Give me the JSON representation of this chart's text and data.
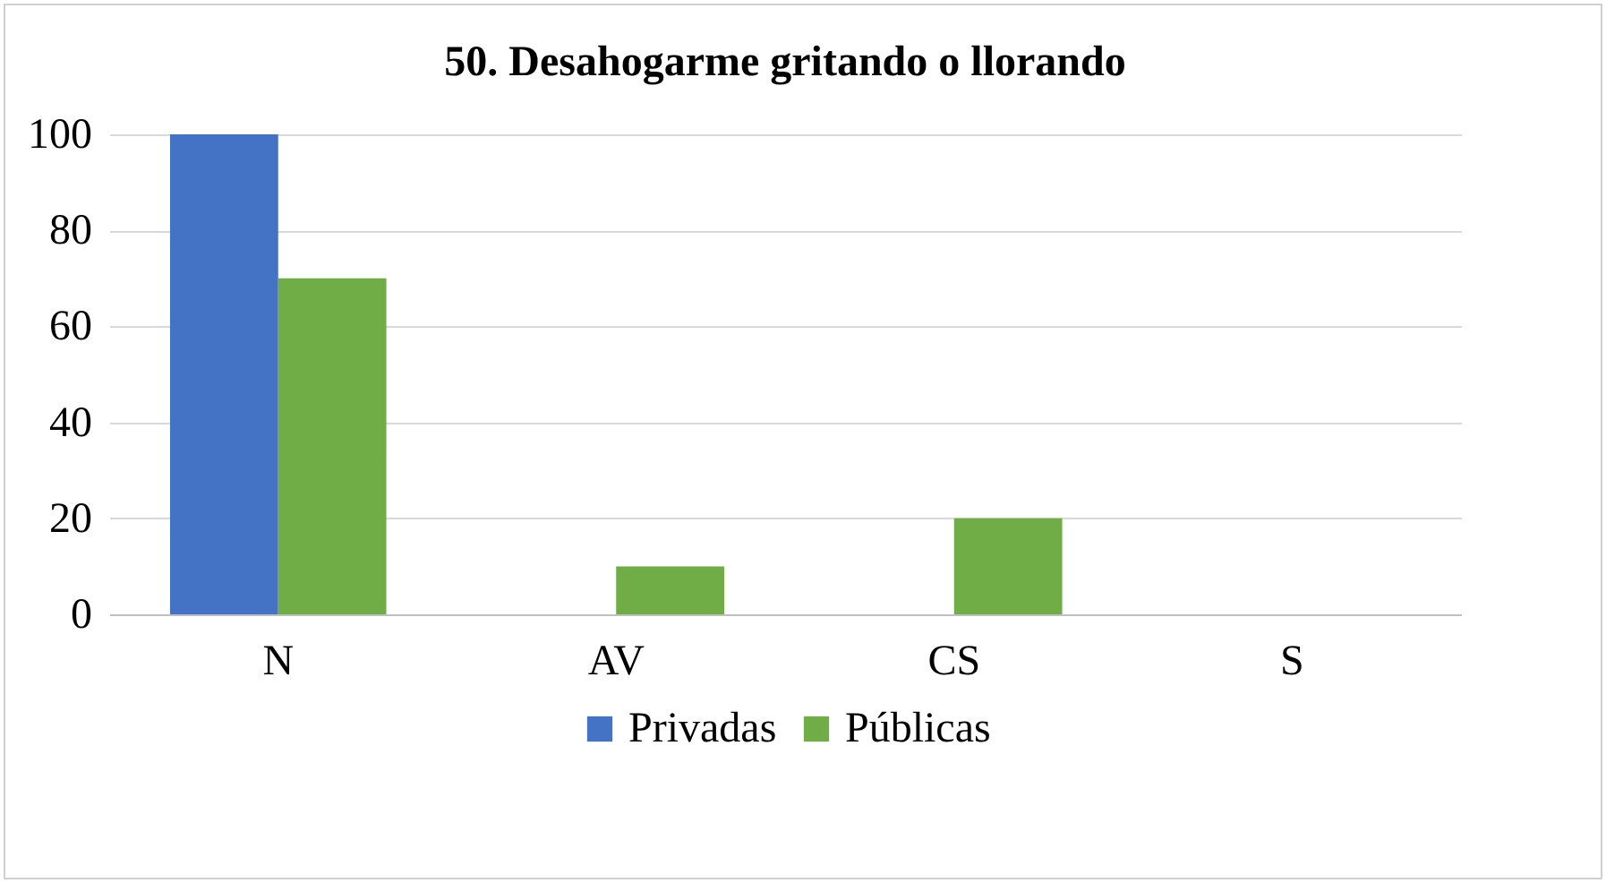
{
  "chart_data": {
    "type": "bar",
    "title": "50. Desahogarme gritando o llorando",
    "categories": [
      "N",
      "AV",
      "CS",
      "S"
    ],
    "series": [
      {
        "name": "Privadas",
        "color": "#4472c4",
        "values": [
          100,
          0,
          0,
          0
        ]
      },
      {
        "name": "Públicas",
        "color": "#70ad47",
        "values": [
          70,
          10,
          20,
          0
        ]
      }
    ],
    "ylim": [
      0,
      100
    ],
    "yticks": [
      0,
      20,
      40,
      60,
      80,
      100
    ],
    "grid": "y",
    "legend": "bottom"
  }
}
